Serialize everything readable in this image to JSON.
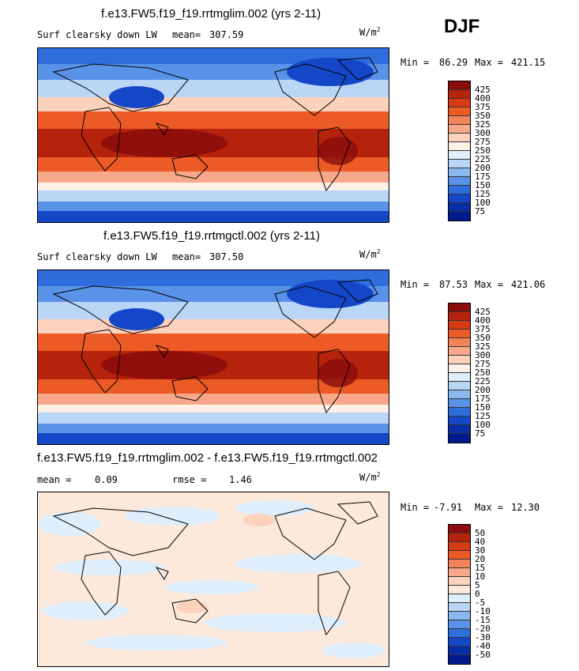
{
  "season": "DJF",
  "panels": [
    {
      "title": "f.e13.FW5.f19_f19.rrtmglim.002 (yrs 2-11)",
      "variable": "Surf clearsky down LW",
      "stat1_label": "mean=",
      "stat1_value": "307.59",
      "units": "W/m",
      "units_sup": "2",
      "min_label": "Min =",
      "min_value": "86.29",
      "max_label": "Max =",
      "max_value": "421.15",
      "colorbar": {
        "levels": [
          "425",
          "400",
          "375",
          "350",
          "325",
          "300",
          "275",
          "250",
          "225",
          "200",
          "175",
          "150",
          "125",
          "100",
          "75"
        ],
        "colors": [
          "#8a0c0c",
          "#b5230c",
          "#d63a12",
          "#ec5a25",
          "#f3845a",
          "#f7a88a",
          "#fcd2bd",
          "#fdf0e6",
          "#dfeefb",
          "#b9d6f6",
          "#8cb8f0",
          "#5a92e8",
          "#2f6ddd",
          "#1447c8",
          "#082ea6",
          "#001a8c"
        ]
      }
    },
    {
      "title": "f.e13.FW5.f19_f19.rrtmgctl.002 (yrs 2-11)",
      "variable": "Surf clearsky down LW",
      "stat1_label": "mean=",
      "stat1_value": "307.50",
      "units": "W/m",
      "units_sup": "2",
      "min_label": "Min =",
      "min_value": "87.53",
      "max_label": "Max =",
      "max_value": "421.06",
      "colorbar": {
        "levels": [
          "425",
          "400",
          "375",
          "350",
          "325",
          "300",
          "275",
          "250",
          "225",
          "200",
          "175",
          "150",
          "125",
          "100",
          "75"
        ],
        "colors": [
          "#8a0c0c",
          "#b5230c",
          "#d63a12",
          "#ec5a25",
          "#f3845a",
          "#f7a88a",
          "#fcd2bd",
          "#fdf0e6",
          "#dfeefb",
          "#b9d6f6",
          "#8cb8f0",
          "#5a92e8",
          "#2f6ddd",
          "#1447c8",
          "#082ea6",
          "#001a8c"
        ]
      }
    },
    {
      "title": "f.e13.FW5.f19_f19.rrtmglim.002 - f.e13.FW5.f19_f19.rrtmgctl.002",
      "stat1_label": "mean =",
      "stat1_value": "0.09",
      "stat2_label": "rmse =",
      "stat2_value": "1.46",
      "units": "W/m",
      "units_sup": "2",
      "min_label": "Min =",
      "min_value": "-7.91",
      "max_label": "Max =",
      "max_value": "12.30",
      "colorbar": {
        "levels": [
          "50",
          "40",
          "30",
          "20",
          "15",
          "10",
          "5",
          "0",
          "-5",
          "-10",
          "-15",
          "-20",
          "-30",
          "-40",
          "-50"
        ],
        "colors": [
          "#8a0c0c",
          "#b5230c",
          "#d63a12",
          "#ec5a25",
          "#f3845a",
          "#f7a88a",
          "#fcd2bd",
          "#fde9dc",
          "#dfeefb",
          "#b9d6f6",
          "#8cb8f0",
          "#5a92e8",
          "#2f6ddd",
          "#1447c8",
          "#082ea6",
          "#001a8c"
        ]
      }
    }
  ]
}
